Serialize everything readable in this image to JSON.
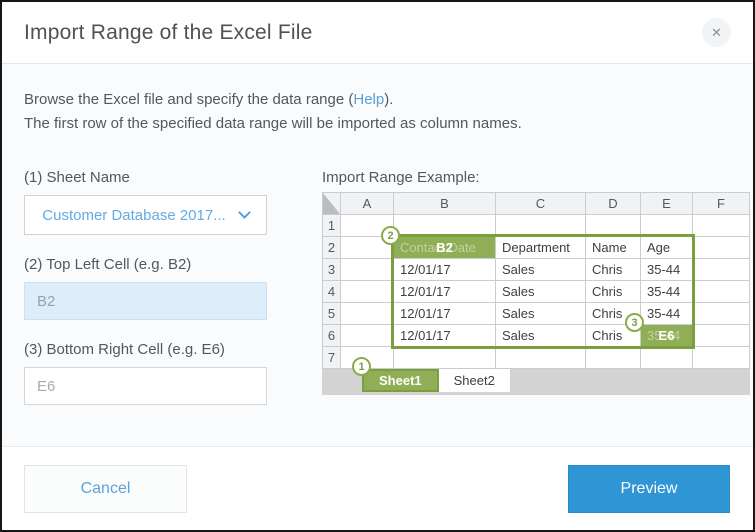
{
  "dialog": {
    "title": "Import Range of the Excel File",
    "close_glyph": "✕"
  },
  "intro": {
    "line1_before": "Browse the Excel file and specify the data range (",
    "line1_link": "Help",
    "line1_after": ").",
    "line2": "The first row of the specified data range will be imported as column names."
  },
  "form": {
    "sheet_name": {
      "label": "(1) Sheet Name",
      "value": "Customer Database 2017..."
    },
    "top_left": {
      "label": "(2) Top Left Cell (e.g. B2)",
      "placeholder": "B2"
    },
    "bottom_right": {
      "label": "(3) Bottom Right Cell (e.g. E6)",
      "placeholder": "E6"
    }
  },
  "example": {
    "title": "Import Range Example:",
    "columns": [
      "A",
      "B",
      "C",
      "D",
      "E",
      "F"
    ],
    "rows": [
      {
        "n": "1",
        "a": "",
        "b": "",
        "c": "",
        "d": "",
        "e": "",
        "f": ""
      },
      {
        "n": "2",
        "a": "",
        "b": "Contact Date",
        "c": "Department",
        "d": "Name",
        "e": "Age",
        "f": ""
      },
      {
        "n": "3",
        "a": "",
        "b": "12/01/17",
        "c": "Sales",
        "d": "Chris",
        "e": "35-44",
        "f": ""
      },
      {
        "n": "4",
        "a": "",
        "b": "12/01/17",
        "c": "Sales",
        "d": "Chris",
        "e": "35-44",
        "f": ""
      },
      {
        "n": "5",
        "a": "",
        "b": "12/01/17",
        "c": "Sales",
        "d": "Chris",
        "e": "35-44",
        "f": ""
      },
      {
        "n": "6",
        "a": "",
        "b": "12/01/17",
        "c": "Sales",
        "d": "Chris",
        "e": "35-44",
        "f": ""
      },
      {
        "n": "7",
        "a": "",
        "b": "",
        "c": "",
        "d": "",
        "e": "",
        "f": ""
      }
    ],
    "overlays": {
      "b2_label": "B2",
      "e6_label": "E6"
    },
    "badges": {
      "step1": "1",
      "step2": "2",
      "step3": "3"
    },
    "tabs": [
      {
        "label": "Sheet1",
        "active": true
      },
      {
        "label": "Sheet2",
        "active": false
      }
    ]
  },
  "footer": {
    "cancel_label": "Cancel",
    "preview_label": "Preview"
  },
  "colors": {
    "accent_blue": "#3095d5",
    "link_blue": "#5a9fd8",
    "range_green": "#8fae55",
    "range_border_green": "#7c9e3e",
    "highlight_input_bg": "#ddedf9"
  }
}
